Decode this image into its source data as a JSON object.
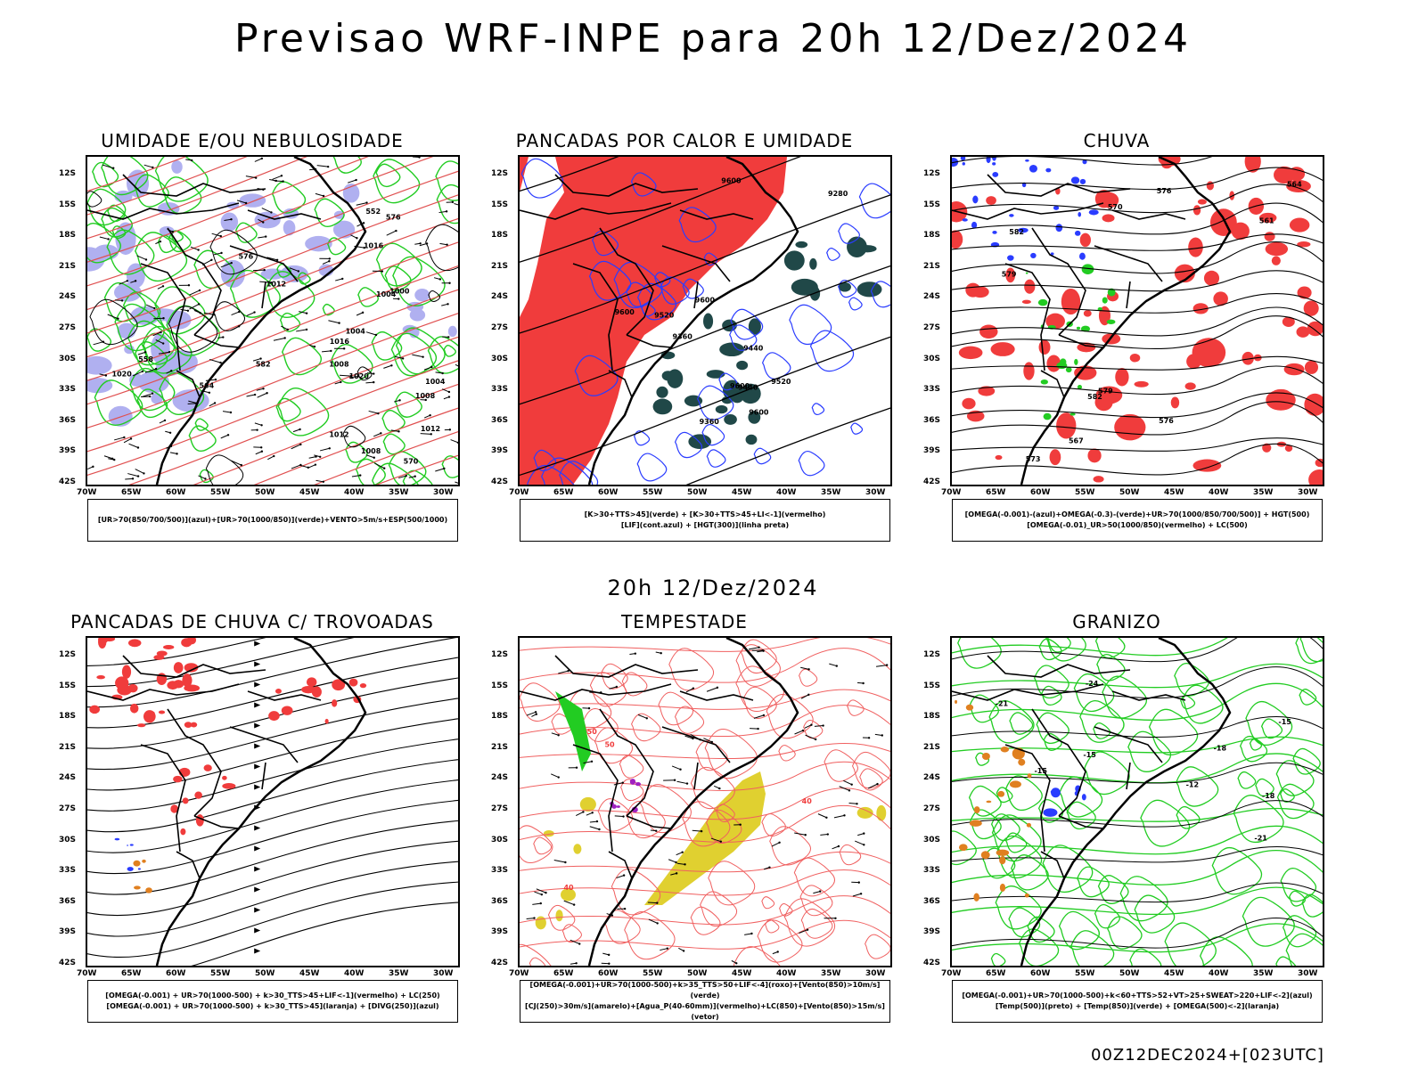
{
  "title": "Previsao WRF-INPE  para 20h 12/Dez/2024",
  "mid_label": "20h 12/Dez/2024",
  "footer": "00Z12DEC2024+[023UTC]",
  "lat_labels": [
    "12S",
    "15S",
    "18S",
    "21S",
    "24S",
    "27S",
    "30S",
    "33S",
    "36S",
    "39S",
    "42S"
  ],
  "lon_labels": [
    "70W",
    "65W",
    "60W",
    "55W",
    "50W",
    "45W",
    "40W",
    "35W",
    "30W"
  ],
  "colors": {
    "red": "#f03c3c",
    "green": "#22cc22",
    "blue": "#2a3cff",
    "lavender": "#b0b0f0",
    "darkteal": "#204848",
    "yellow": "#e0d030",
    "orange": "#e08020",
    "purple": "#a020c0"
  },
  "panels": [
    {
      "title": "UMIDADE E/OU NEBULOSIDADE",
      "legend": [
        "[UR>70(850/700/500)](azul)+[UR>70(1000/850)](verde)+VENTO>5m/s+ESP(500/1000)"
      ],
      "labels": [
        "1008",
        "1004",
        "1004",
        "1008",
        "1012",
        "1016",
        "1000",
        "1012",
        "1012",
        "1008",
        "1004",
        "1016",
        "1020",
        "1020",
        "564",
        "570",
        "576",
        "558",
        "552",
        "576",
        "582"
      ]
    },
    {
      "title": "PANCADAS POR CALOR E UMIDADE",
      "legend": [
        "[K>30+TTS>45](verde) + [K>30+TTS>45+LI<-1](vermelho)",
        "[LIF](cont.azul) + [HGT(300)](linha preta)"
      ],
      "labels": [
        "9600",
        "9600",
        "9600",
        "9600",
        "9520",
        "9440",
        "9360",
        "9280",
        "9520",
        "9440",
        "9360",
        "9600"
      ]
    },
    {
      "title": "CHUVA",
      "legend": [
        "[OMEGA(-0.001)-(azul)+OMEGA(-0.3)-(verde)+UR>70(1000/850/700/500)] + HGT(500)",
        "[OMEGA(-0.01)_UR>50(1000/850)(vermelho) + LC(500)"
      ],
      "labels": [
        "582",
        "579",
        "576",
        "573",
        "570",
        "567",
        "564",
        "561",
        "576",
        "579",
        "582"
      ]
    },
    {
      "title": "PANCADAS DE CHUVA C/ TROVOADAS",
      "legend": [
        "[OMEGA(-0.001) + UR>70(1000-500) + k>30_TTS>45+LIF<-1](vermelho) + LC(250)",
        "[OMEGA(-0.001) + UR>70(1000-500) + k>30_TTS>45](laranja) + [DIVG(250)](azul)"
      ],
      "labels": []
    },
    {
      "title": "TEMPESTADE",
      "legend": [
        "[OMEGA(-0.001)+UR>70(1000-500)+k>35_TTS>50+LIF<-4](roxo)+[Vento(850)>10m/s](verde)",
        "[CJ(250)>30m/s](amarelo)+[Agua_P(40-60mm)](vermelho)+LC(850)+[Vento(850)>15m/s](vetor)"
      ],
      "labels": [
        "50",
        "40",
        "40",
        "50"
      ]
    },
    {
      "title": "GRANIZO",
      "legend": [
        "[OMEGA(-0.001)+UR>70(1000-500)+k<60+TTS>52+VT>25+SWEAT>220+LIF<-2](azul)",
        "[Temp(500)](preto) + [Temp(850)](verde) + [OMEGA(500)<-2](laranja)"
      ],
      "labels": [
        "-15",
        "-15",
        "-15",
        "-21",
        "-18",
        "-12",
        "-24",
        "-21",
        "-18"
      ]
    }
  ]
}
